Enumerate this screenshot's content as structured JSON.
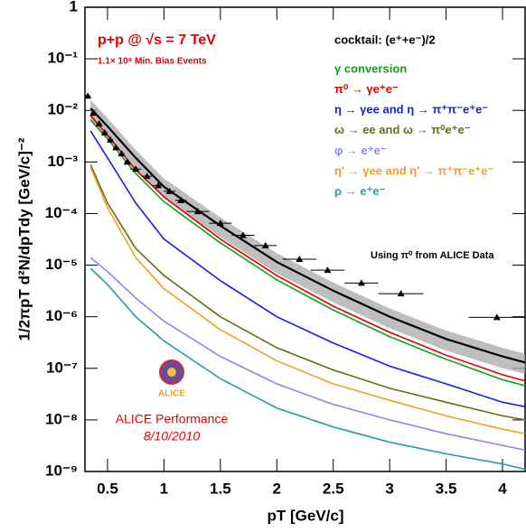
{
  "chart_data": {
    "type": "line",
    "title": "p+p @ √s = 7 TeV",
    "subtitle": "1.1× 10⁸ Min. Bias Events",
    "x_label": "pT [GeV/c]",
    "y_label": "1/2πpT d²N/dpTdy [GeV/c]⁻²",
    "log_y": true,
    "xlim": [
      0.3,
      4.2
    ],
    "ylim": [
      1e-09,
      1
    ],
    "xticks": [
      0.5,
      1,
      1.5,
      2,
      2.5,
      3,
      3.5,
      4
    ],
    "yticks": [
      1,
      {
        "value": 0.1,
        "label": "10⁻¹"
      },
      {
        "value": 0.01,
        "label": "10⁻²"
      },
      {
        "value": 0.001,
        "label": "10⁻³"
      },
      {
        "value": 0.0001,
        "label": "10⁻⁴"
      },
      {
        "value": 1e-05,
        "label": "10⁻⁵"
      },
      {
        "value": 1e-06,
        "label": "10⁻⁶"
      },
      {
        "value": 1e-07,
        "label": "10⁻⁷"
      },
      {
        "value": 1e-08,
        "label": "10⁻⁸"
      },
      {
        "value": 1e-09,
        "label": "10⁻⁹"
      }
    ],
    "legend_title": "cocktail: (e⁺+e⁻)/2",
    "x": [
      0.35,
      0.5,
      0.75,
      1,
      1.5,
      2,
      2.5,
      3,
      3.5,
      4,
      4.2
    ],
    "cocktail": {
      "color": "#000000",
      "band_color": "#a8a8a8",
      "values": [
        0.011,
        0.0049,
        0.0012,
        0.00033,
        5.8e-05,
        1.15e-05,
        3.2e-06,
        1e-06,
        3.7e-07,
        1.7e-07,
        1.3e-07
      ],
      "band_high": [
        0.016,
        0.0071,
        0.0017,
        0.00048,
        8.4e-05,
        1.7e-05,
        4.6e-06,
        1.45e-06,
        5.4e-07,
        2.5e-07,
        1.9e-07
      ],
      "band_low": [
        0.0066,
        0.0029,
        0.00072,
        0.0002,
        3.5e-05,
        6.9e-06,
        1.9e-06,
        6e-07,
        2.2e-07,
        1e-07,
        7.8e-08
      ]
    },
    "series": [
      {
        "name": "γ conversion",
        "color": "#1a9a1a",
        "values": [
          0.0065,
          0.0028,
          0.0006,
          0.00017,
          2.7e-05,
          5.2e-06,
          1.35e-06,
          4.1e-07,
          1.5e-07,
          6e-08,
          4.6e-08
        ]
      },
      {
        "name": "π⁰ → γe⁺e⁻",
        "color": "#e00000",
        "values": [
          0.0079,
          0.0033,
          0.0007,
          0.00021,
          3.2e-05,
          6.3e-06,
          1.6e-06,
          5e-07,
          1.8e-07,
          7.5e-08,
          5.7e-08
        ]
      },
      {
        "name": "η → γee and η → π⁺π⁻e⁺e⁻",
        "color": "#1a1aee",
        "values": [
          0.004,
          0.0012,
          0.00016,
          3.2e-05,
          5e-06,
          1e-06,
          3.1e-07,
          1.1e-07,
          5e-08,
          2.2e-08,
          1.8e-08
        ]
      },
      {
        "name": "ω → ee and ω → π⁰e⁺e⁻",
        "color": "#6b6b10",
        "values": [
          0.00088,
          0.00016,
          2.1e-05,
          6.3e-06,
          1e-06,
          2.5e-07,
          9.3e-08,
          4.1e-08,
          2.2e-08,
          1.2e-08,
          1e-08
        ]
      },
      {
        "name": "φ → e⁺e⁻",
        "color": "#8888ee",
        "values": [
          1.4e-05,
          7.5e-06,
          2.3e-06,
          8.2e-07,
          1.7e-07,
          5e-08,
          2e-08,
          1e-08,
          5.4e-09,
          3.2e-09,
          2.6e-09
        ]
      },
      {
        "name": "η' → γee and η' → π⁺π⁻e⁺e⁻",
        "color": "#f0a020",
        "values": [
          0.00079,
          0.00013,
          1.4e-05,
          3.5e-06,
          5.6e-07,
          1.4e-07,
          5e-08,
          2.4e-08,
          1.2e-08,
          6.6e-09,
          5.4e-09
        ]
      },
      {
        "name": "ρ → e⁺e⁻",
        "color": "#20a0a0",
        "values": [
          8.7e-06,
          4.2e-06,
          1e-06,
          3.4e-07,
          6.3e-08,
          1.7e-08,
          7.3e-09,
          3.7e-09,
          2.2e-09,
          1.4e-09,
          1.1e-09
        ]
      }
    ],
    "data_points": {
      "label": "Using π⁰ from ALICE Data",
      "color": "#000000",
      "x": [
        0.325,
        0.375,
        0.425,
        0.475,
        0.525,
        0.575,
        0.625,
        0.675,
        0.75,
        0.85,
        0.95,
        1.05,
        1.15,
        1.3,
        1.5,
        1.7,
        1.9,
        2.2,
        2.45,
        2.75,
        3.1,
        3.95
      ],
      "xerr": [
        0.025,
        0.025,
        0.025,
        0.025,
        0.025,
        0.025,
        0.025,
        0.025,
        0.05,
        0.05,
        0.05,
        0.05,
        0.05,
        0.1,
        0.1,
        0.1,
        0.1,
        0.15,
        0.15,
        0.15,
        0.2,
        0.25
      ],
      "values": [
        0.019,
        0.0089,
        0.0055,
        0.0037,
        0.0027,
        0.0019,
        0.00145,
        0.001,
        0.00073,
        0.00053,
        0.00035,
        0.00027,
        0.00018,
        0.00011,
        6.5e-05,
        3.8e-05,
        2.4e-05,
        1.3e-05,
        8e-06,
        4.5e-06,
        2.8e-06,
        9.7e-07
      ]
    },
    "logo_text": "ALICE",
    "annotations": [
      "ALICE Performance",
      "8/10/2010"
    ]
  }
}
